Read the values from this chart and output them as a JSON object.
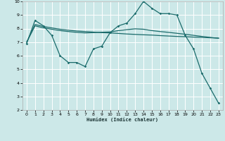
{
  "background_color": "#cce8e8",
  "grid_color": "#ffffff",
  "line_color": "#1a6b6b",
  "xlabel": "Humidex (Indice chaleur)",
  "xlim": [
    -0.5,
    23.5
  ],
  "ylim": [
    2,
    10
  ],
  "yticks": [
    2,
    3,
    4,
    5,
    6,
    7,
    8,
    9,
    10
  ],
  "xticks": [
    0,
    1,
    2,
    3,
    4,
    5,
    6,
    7,
    8,
    9,
    10,
    11,
    12,
    13,
    14,
    15,
    16,
    17,
    18,
    19,
    20,
    21,
    22,
    23
  ],
  "curve1_x": [
    0,
    1,
    2,
    3,
    4,
    5,
    6,
    7,
    8,
    9,
    10,
    11,
    12,
    13,
    14,
    15,
    16,
    17,
    18,
    19,
    20,
    21,
    22,
    23
  ],
  "curve1_y": [
    6.9,
    8.6,
    8.2,
    7.5,
    6.0,
    5.5,
    5.5,
    5.2,
    6.5,
    6.7,
    7.7,
    8.2,
    8.4,
    9.1,
    10.0,
    9.5,
    9.1,
    9.1,
    9.0,
    7.5,
    6.5,
    4.7,
    3.6,
    2.5
  ],
  "curve2_x": [
    0,
    1,
    2,
    3,
    4,
    5,
    6,
    7,
    8,
    9,
    10,
    11,
    12,
    13,
    14,
    15,
    16,
    17,
    18,
    19,
    20,
    21,
    22,
    23
  ],
  "curve2_y": [
    7.0,
    8.3,
    8.15,
    8.05,
    7.95,
    7.88,
    7.82,
    7.78,
    7.74,
    7.7,
    7.68,
    7.64,
    7.6,
    7.57,
    7.54,
    7.52,
    7.48,
    7.45,
    7.42,
    7.4,
    7.37,
    7.35,
    7.32,
    7.3
  ],
  "curve3_x": [
    0,
    1,
    2,
    3,
    4,
    5,
    6,
    7,
    8,
    9,
    10,
    11,
    12,
    13,
    14,
    15,
    16,
    17,
    18,
    19,
    20,
    21,
    22,
    23
  ],
  "curve3_y": [
    7.0,
    8.2,
    8.05,
    7.95,
    7.85,
    7.78,
    7.72,
    7.68,
    7.7,
    7.73,
    7.75,
    7.85,
    7.92,
    7.98,
    7.95,
    7.85,
    7.78,
    7.72,
    7.65,
    7.58,
    7.5,
    7.42,
    7.35,
    7.28
  ]
}
